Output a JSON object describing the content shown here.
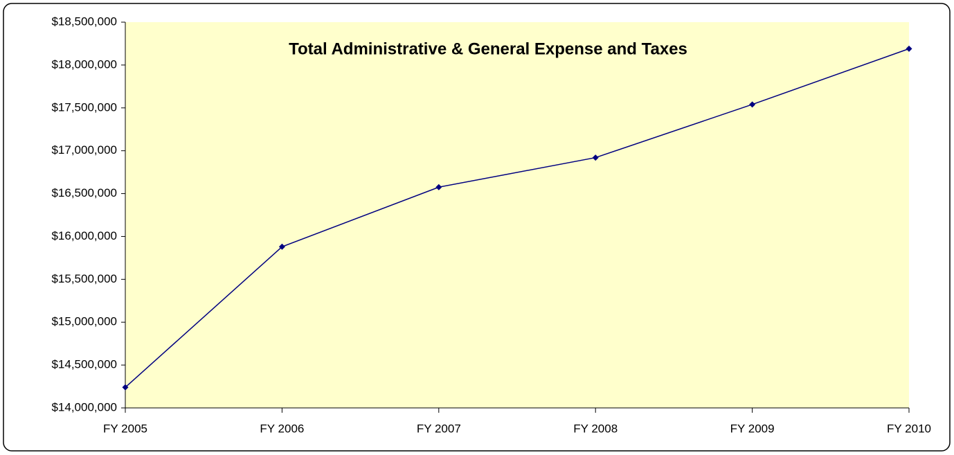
{
  "chart_data": {
    "type": "line",
    "title": "Total Administrative & General Expense and Taxes",
    "categories": [
      "FY 2005",
      "FY 2006",
      "FY 2007",
      "FY 2008",
      "FY 2009",
      "FY 2010"
    ],
    "series": [
      {
        "name": "Total Administrative & General Expense and Taxes",
        "color": "#000080",
        "values": [
          14240000,
          15880000,
          16575000,
          16920000,
          17540000,
          18190000
        ]
      }
    ],
    "ylim": [
      14000000,
      18500000
    ],
    "yticks": [
      {
        "value": 14000000,
        "label": "$14,000,000"
      },
      {
        "value": 14500000,
        "label": "$14,500,000"
      },
      {
        "value": 15000000,
        "label": "$15,000,000"
      },
      {
        "value": 15500000,
        "label": "$15,500,000"
      },
      {
        "value": 16000000,
        "label": "$16,000,000"
      },
      {
        "value": 16500000,
        "label": "$16,500,000"
      },
      {
        "value": 17000000,
        "label": "$17,000,000"
      },
      {
        "value": 17500000,
        "label": "$17,500,000"
      },
      {
        "value": 18000000,
        "label": "$18,000,000"
      },
      {
        "value": 18500000,
        "label": "$18,500,000"
      }
    ],
    "grid": false,
    "plot_background": "#FFFFCC"
  }
}
